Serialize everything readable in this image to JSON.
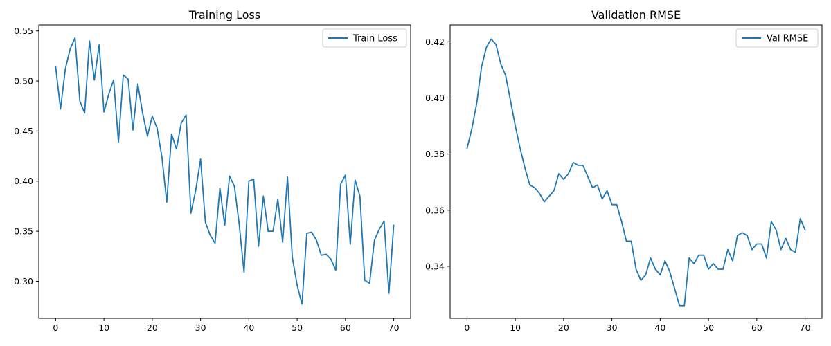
{
  "chart_data": [
    {
      "type": "line",
      "title": "Training Loss",
      "xlabel": "",
      "ylabel": "",
      "xlim": [
        -3.5,
        73.5
      ],
      "ylim": [
        0.263,
        0.556
      ],
      "xticks": [
        0,
        10,
        20,
        30,
        40,
        50,
        60,
        70
      ],
      "yticks": [
        0.3,
        0.35,
        0.4,
        0.45,
        0.5,
        0.55
      ],
      "xtick_labels": [
        "0",
        "10",
        "20",
        "30",
        "40",
        "50",
        "60",
        "70"
      ],
      "ytick_labels": [
        "0.30",
        "0.35",
        "0.40",
        "0.45",
        "0.50",
        "0.55"
      ],
      "grid": false,
      "legend_position": "top-right",
      "series": [
        {
          "name": "Train Loss",
          "color": "#1f77b4",
          "x": [
            0,
            1,
            2,
            3,
            4,
            5,
            6,
            7,
            8,
            9,
            10,
            11,
            12,
            13,
            14,
            15,
            16,
            17,
            18,
            19,
            20,
            21,
            22,
            23,
            24,
            25,
            26,
            27,
            28,
            29,
            30,
            31,
            32,
            33,
            34,
            35,
            36,
            37,
            38,
            39,
            40,
            41,
            42,
            43,
            44,
            45,
            46,
            47,
            48,
            49,
            50,
            51,
            52,
            53,
            54,
            55,
            56,
            57,
            58,
            59,
            60,
            61,
            62,
            63,
            64,
            65,
            66,
            67,
            68,
            69,
            70
          ],
          "values": [
            0.514,
            0.472,
            0.512,
            0.532,
            0.543,
            0.48,
            0.468,
            0.54,
            0.501,
            0.536,
            0.469,
            0.487,
            0.501,
            0.439,
            0.506,
            0.502,
            0.451,
            0.497,
            0.468,
            0.445,
            0.465,
            0.453,
            0.424,
            0.379,
            0.447,
            0.432,
            0.458,
            0.466,
            0.368,
            0.391,
            0.422,
            0.359,
            0.346,
            0.338,
            0.393,
            0.356,
            0.405,
            0.395,
            0.357,
            0.309,
            0.4,
            0.402,
            0.335,
            0.385,
            0.35,
            0.35,
            0.382,
            0.339,
            0.404,
            0.324,
            0.296,
            0.277,
            0.348,
            0.349,
            0.341,
            0.326,
            0.327,
            0.322,
            0.311,
            0.397,
            0.406,
            0.337,
            0.401,
            0.385,
            0.301,
            0.298,
            0.341,
            0.352,
            0.36,
            0.288,
            0.356
          ]
        }
      ]
    },
    {
      "type": "line",
      "title": "Validation RMSE",
      "xlabel": "",
      "ylabel": "",
      "xlim": [
        -3.5,
        73.5
      ],
      "ylim": [
        0.3215,
        0.426
      ],
      "xticks": [
        0,
        10,
        20,
        30,
        40,
        50,
        60,
        70
      ],
      "yticks": [
        0.34,
        0.36,
        0.38,
        0.4,
        0.42
      ],
      "xtick_labels": [
        "0",
        "10",
        "20",
        "30",
        "40",
        "50",
        "60",
        "70"
      ],
      "ytick_labels": [
        "0.34",
        "0.36",
        "0.38",
        "0.40",
        "0.42"
      ],
      "grid": false,
      "legend_position": "top-right",
      "series": [
        {
          "name": "Val RMSE",
          "color": "#1f77b4",
          "x": [
            0,
            1,
            2,
            3,
            4,
            5,
            6,
            7,
            8,
            9,
            10,
            11,
            12,
            13,
            14,
            15,
            16,
            17,
            18,
            19,
            20,
            21,
            22,
            23,
            24,
            25,
            26,
            27,
            28,
            29,
            30,
            31,
            32,
            33,
            34,
            35,
            36,
            37,
            38,
            39,
            40,
            41,
            42,
            43,
            44,
            45,
            46,
            47,
            48,
            49,
            50,
            51,
            52,
            53,
            54,
            55,
            56,
            57,
            58,
            59,
            60,
            61,
            62,
            63,
            64,
            65,
            66,
            67,
            68,
            69,
            70
          ],
          "values": [
            0.382,
            0.389,
            0.398,
            0.411,
            0.418,
            0.421,
            0.419,
            0.412,
            0.408,
            0.399,
            0.39,
            0.382,
            0.375,
            0.369,
            0.368,
            0.366,
            0.363,
            0.365,
            0.367,
            0.373,
            0.371,
            0.373,
            0.377,
            0.376,
            0.376,
            0.372,
            0.368,
            0.369,
            0.364,
            0.367,
            0.362,
            0.362,
            0.356,
            0.349,
            0.349,
            0.339,
            0.335,
            0.337,
            0.343,
            0.339,
            0.337,
            0.342,
            0.338,
            0.332,
            0.326,
            0.326,
            0.343,
            0.341,
            0.344,
            0.344,
            0.339,
            0.341,
            0.339,
            0.339,
            0.346,
            0.342,
            0.351,
            0.352,
            0.351,
            0.346,
            0.348,
            0.348,
            0.343,
            0.356,
            0.353,
            0.346,
            0.35,
            0.346,
            0.345,
            0.357,
            0.353
          ]
        }
      ]
    }
  ]
}
